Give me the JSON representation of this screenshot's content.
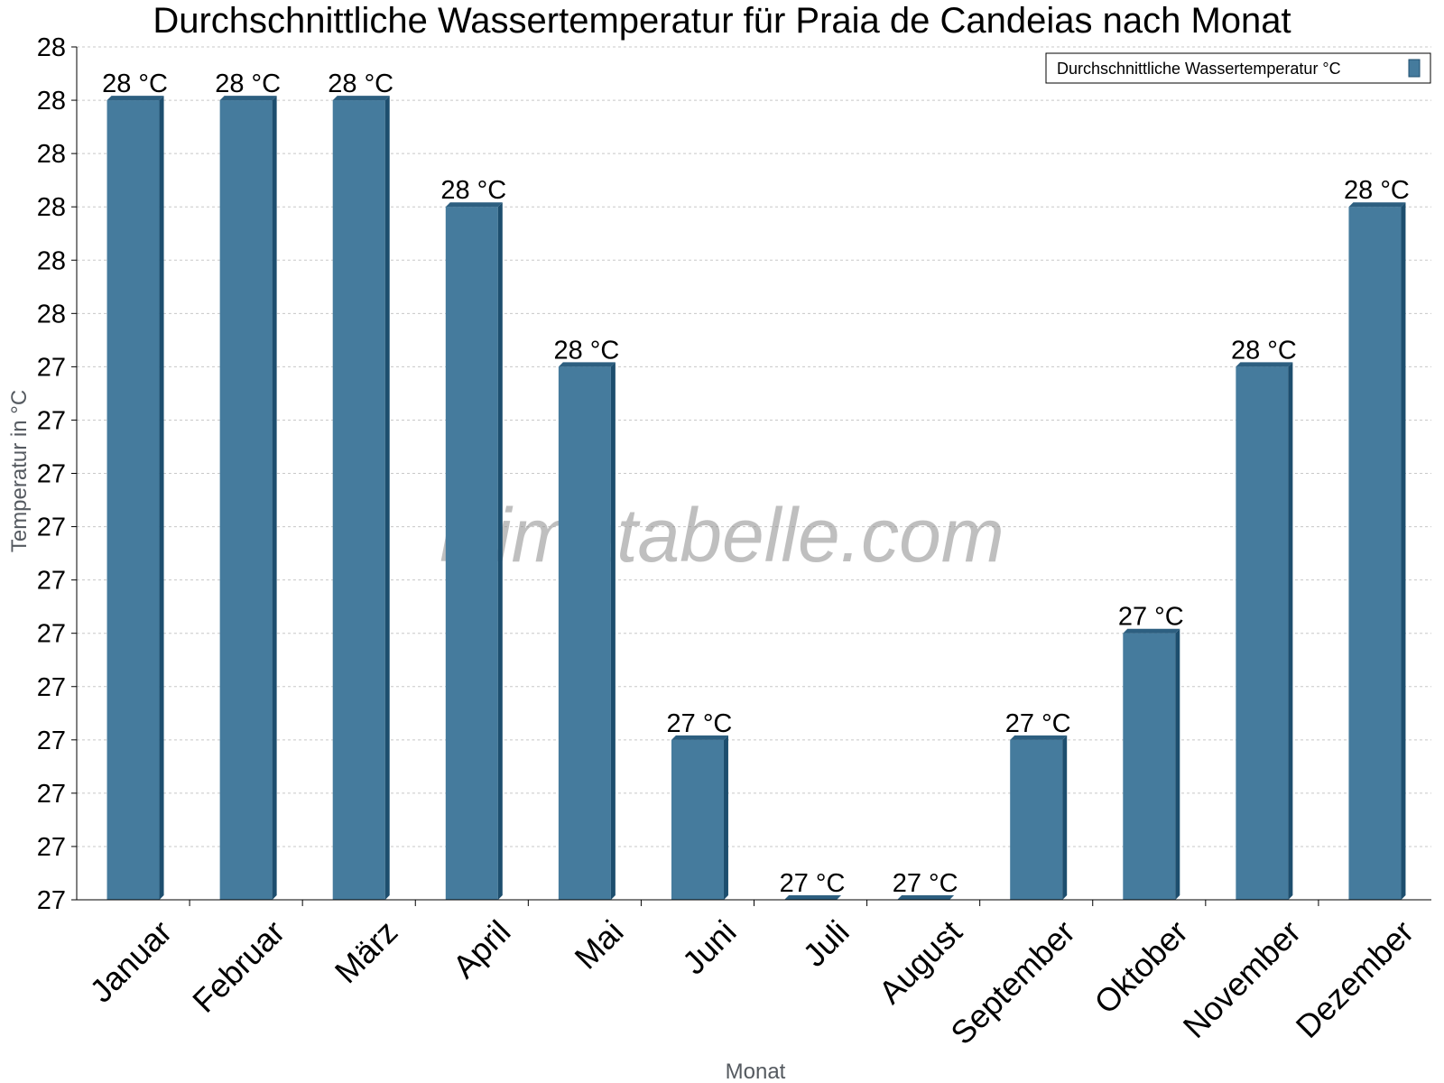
{
  "chart_data": {
    "type": "bar",
    "title": "Durchschnittliche Wassertemperatur für Praia de Candeias nach Monat",
    "xlabel": "Monat",
    "ylabel": "Temperatur in °C",
    "categories": [
      "Januar",
      "Februar",
      "März",
      "April",
      "Mai",
      "Juni",
      "Juli",
      "August",
      "September",
      "Oktober",
      "November",
      "Dezember"
    ],
    "series": [
      {
        "name": "Durchschnittliche Wassertemperatur °C",
        "values": [
          27.75,
          27.75,
          27.75,
          27.65,
          27.5,
          27.15,
          27.0,
          27.0,
          27.15,
          27.25,
          27.5,
          27.65
        ],
        "labels": [
          "28 °C",
          "28 °C",
          "28 °C",
          "28 °C",
          "28 °C",
          "27 °C",
          "27 °C",
          "27 °C",
          "27 °C",
          "27 °C",
          "28 °C",
          "28 °C"
        ]
      }
    ],
    "ylim": [
      27.0,
      27.8
    ],
    "yticks": [
      27.0,
      27.05,
      27.1,
      27.15,
      27.2,
      27.25,
      27.3,
      27.35,
      27.4,
      27.45,
      27.5,
      27.55,
      27.6,
      27.65,
      27.7,
      27.75,
      27.8
    ],
    "ytick_labels": [
      "27",
      "27",
      "27",
      "27",
      "27",
      "27",
      "27",
      "27",
      "27",
      "27",
      "27",
      "28",
      "28",
      "28",
      "28",
      "28",
      "28"
    ],
    "grid": true,
    "legend_position": "top-right",
    "colors": {
      "bar": "#457b9d",
      "bar_dark": "#1d4e6e",
      "bar_top": "#2d5f80"
    },
    "watermark": "klimatabelle.com"
  }
}
